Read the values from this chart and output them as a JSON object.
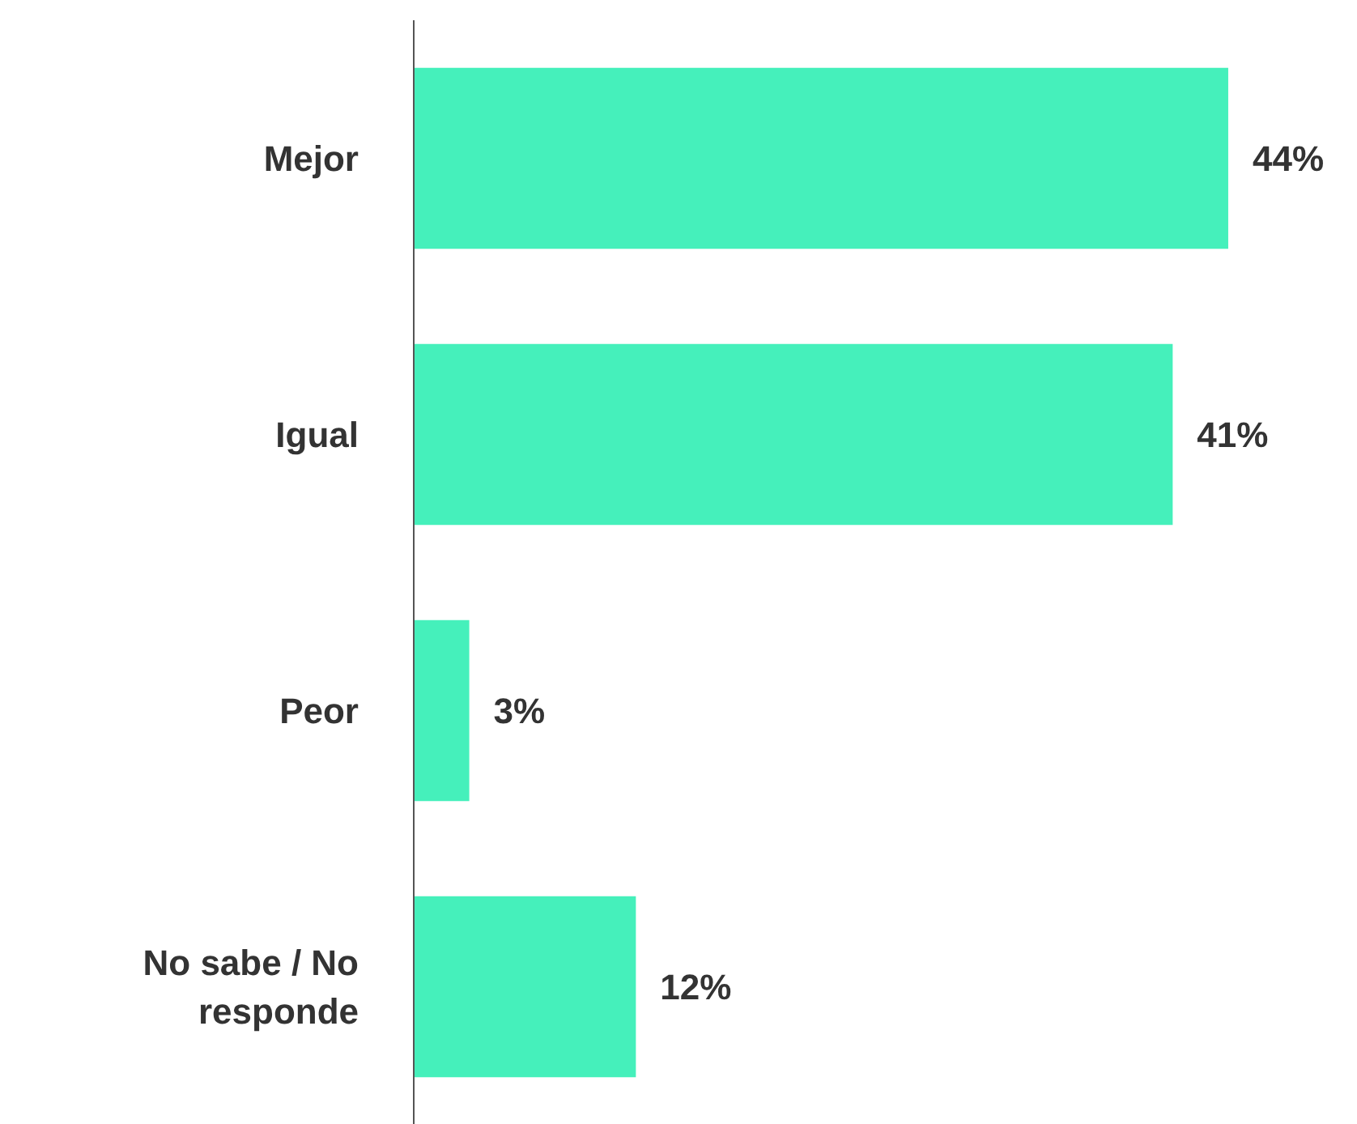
{
  "chart_data": {
    "type": "bar",
    "orientation": "horizontal",
    "categories": [
      "Mejor",
      "Igual",
      "Peor",
      "No sabe / No responde"
    ],
    "values": [
      44,
      41,
      3,
      12
    ],
    "value_labels": [
      "44%",
      "41%",
      "3%",
      "12%"
    ],
    "color": "#45f0bb",
    "grid": false,
    "tick_labels": "y"
  }
}
